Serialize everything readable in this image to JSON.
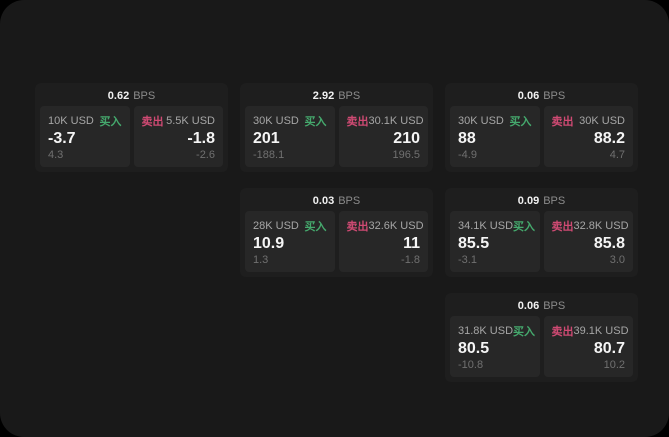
{
  "app": {
    "unit_label": "BPS",
    "buy_label": "买入",
    "sell_label": "卖出"
  },
  "colors": {
    "outer_bg": "#000000",
    "page_bg": "#191919",
    "card_bg": "#1e1e1e",
    "panel_bg": "#272727",
    "buy_green": "#45a96d",
    "sell_rose": "#cf4a73",
    "value_white": "#f5f5f5",
    "label_gray": "#a6a6a6",
    "delta_gray": "#707070"
  },
  "cards": [
    {
      "bps": "0.62",
      "buy": {
        "size": "10K USD",
        "side": "买入",
        "value": "-3.7",
        "delta": "4.3"
      },
      "sell": {
        "side": "卖出",
        "size": "5.5K USD",
        "value": "-1.8",
        "delta": "-2.6"
      }
    },
    {
      "bps": "2.92",
      "buy": {
        "size": "30K USD",
        "side": "买入",
        "value": "201",
        "delta": "-188.1"
      },
      "sell": {
        "side": "卖出",
        "size": "30.1K USD",
        "value": "210",
        "delta": "196.5"
      }
    },
    {
      "bps": "0.06",
      "buy": {
        "size": "30K USD",
        "side": "买入",
        "value": "88",
        "delta": "-4.9"
      },
      "sell": {
        "side": "卖出",
        "size": "30K USD",
        "value": "88.2",
        "delta": "4.7"
      }
    },
    {
      "bps": "0.03",
      "buy": {
        "size": "28K USD",
        "side": "买入",
        "value": "10.9",
        "delta": "1.3"
      },
      "sell": {
        "side": "卖出",
        "size": "32.6K USD",
        "value": "11",
        "delta": "-1.8"
      }
    },
    {
      "bps": "0.09",
      "buy": {
        "size": "34.1K USD",
        "side": "买入",
        "value": "85.5",
        "delta": "-3.1"
      },
      "sell": {
        "side": "卖出",
        "size": "32.8K USD",
        "value": "85.8",
        "delta": "3.0"
      }
    },
    {
      "bps": "0.06",
      "buy": {
        "size": "31.8K USD",
        "side": "买入",
        "value": "80.5",
        "delta": "-10.8"
      },
      "sell": {
        "side": "卖出",
        "size": "39.1K USD",
        "value": "80.7",
        "delta": "10.2"
      }
    }
  ]
}
